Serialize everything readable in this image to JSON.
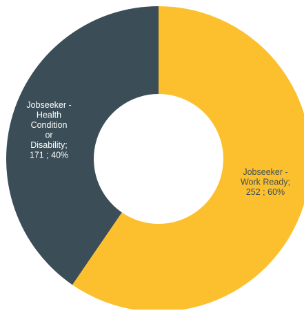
{
  "chart_data": {
    "type": "pie",
    "variant": "donut",
    "title": "",
    "legend": "none",
    "slices": [
      {
        "label_lines": [
          "Jobseeker -",
          "Work Ready;",
          "252 ; 60%"
        ],
        "value": 252,
        "percent": 60,
        "color": "#fcc02e",
        "label_color": "#3b4d57"
      },
      {
        "label_lines": [
          "Jobseeker -",
          "Health",
          "Condition",
          "or",
          "Disability;",
          "171 ; 40%"
        ],
        "value": 171,
        "percent": 40,
        "color": "#3b4d57",
        "label_color": "#ffffff"
      }
    ]
  }
}
